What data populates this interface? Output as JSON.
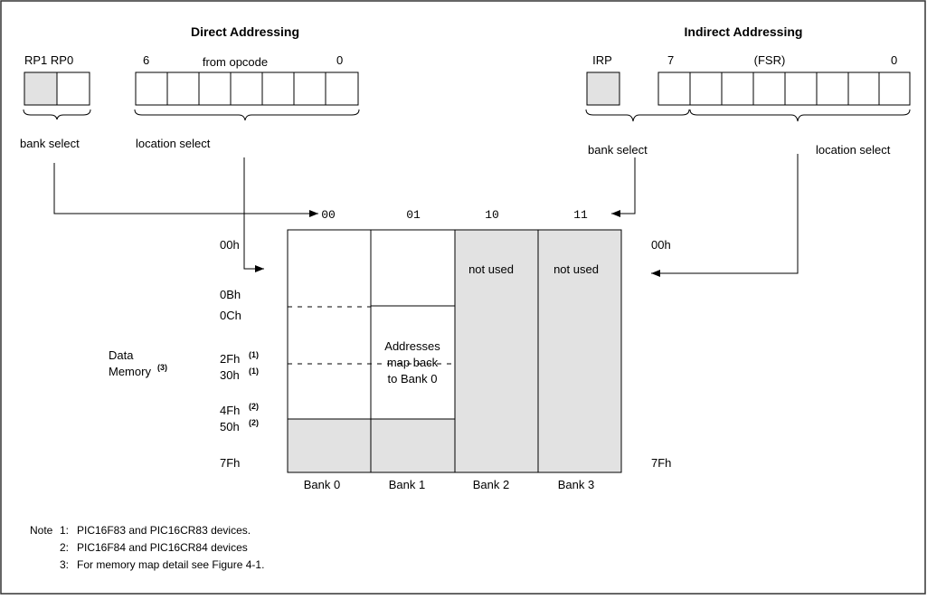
{
  "direct": {
    "title": "Direct Addressing",
    "rp_label": "RP1 RP0",
    "bit_high": "6",
    "field_label": "from opcode",
    "bit_low": "0",
    "bank_select": "bank select",
    "location_select": "location select"
  },
  "indirect": {
    "title": "Indirect Addressing",
    "irp_label": "IRP",
    "bit_high": "7",
    "field_label": "(FSR)",
    "bit_low": "0",
    "bank_select": "bank select",
    "location_select": "location select"
  },
  "bank_codes": [
    "00",
    "01",
    "10",
    "11"
  ],
  "left_addresses": {
    "a00": "00h",
    "a0b": "0Bh",
    "a0c": "0Ch",
    "a2f": "2Fh",
    "a30": "30h",
    "a4f": "4Fh",
    "a50": "50h",
    "a7f": "7Fh",
    "sup1": "(1)",
    "sup2": "(2)"
  },
  "right_addresses": {
    "top": "00h",
    "bottom": "7Fh"
  },
  "memory_label": {
    "line1": "Data",
    "line2": "Memory",
    "sup": "(3)"
  },
  "banks": {
    "labels": [
      "Bank 0",
      "Bank 1",
      "Bank 2",
      "Bank 3"
    ],
    "not_used": "not used",
    "mapback": [
      "Addresses",
      "map back",
      "to Bank 0"
    ]
  },
  "notes": {
    "prefix": "Note",
    "items": [
      {
        "num": "1:",
        "text": "PIC16F83 and PIC16CR83 devices."
      },
      {
        "num": "2:",
        "text": "PIC16F84 and PIC16CR84 devices"
      },
      {
        "num": "3:",
        "text": "For memory map detail see Figure 4-1."
      }
    ]
  },
  "colors": {
    "shade": "#e2e2e2",
    "line": "#000000",
    "border": "#333333"
  }
}
